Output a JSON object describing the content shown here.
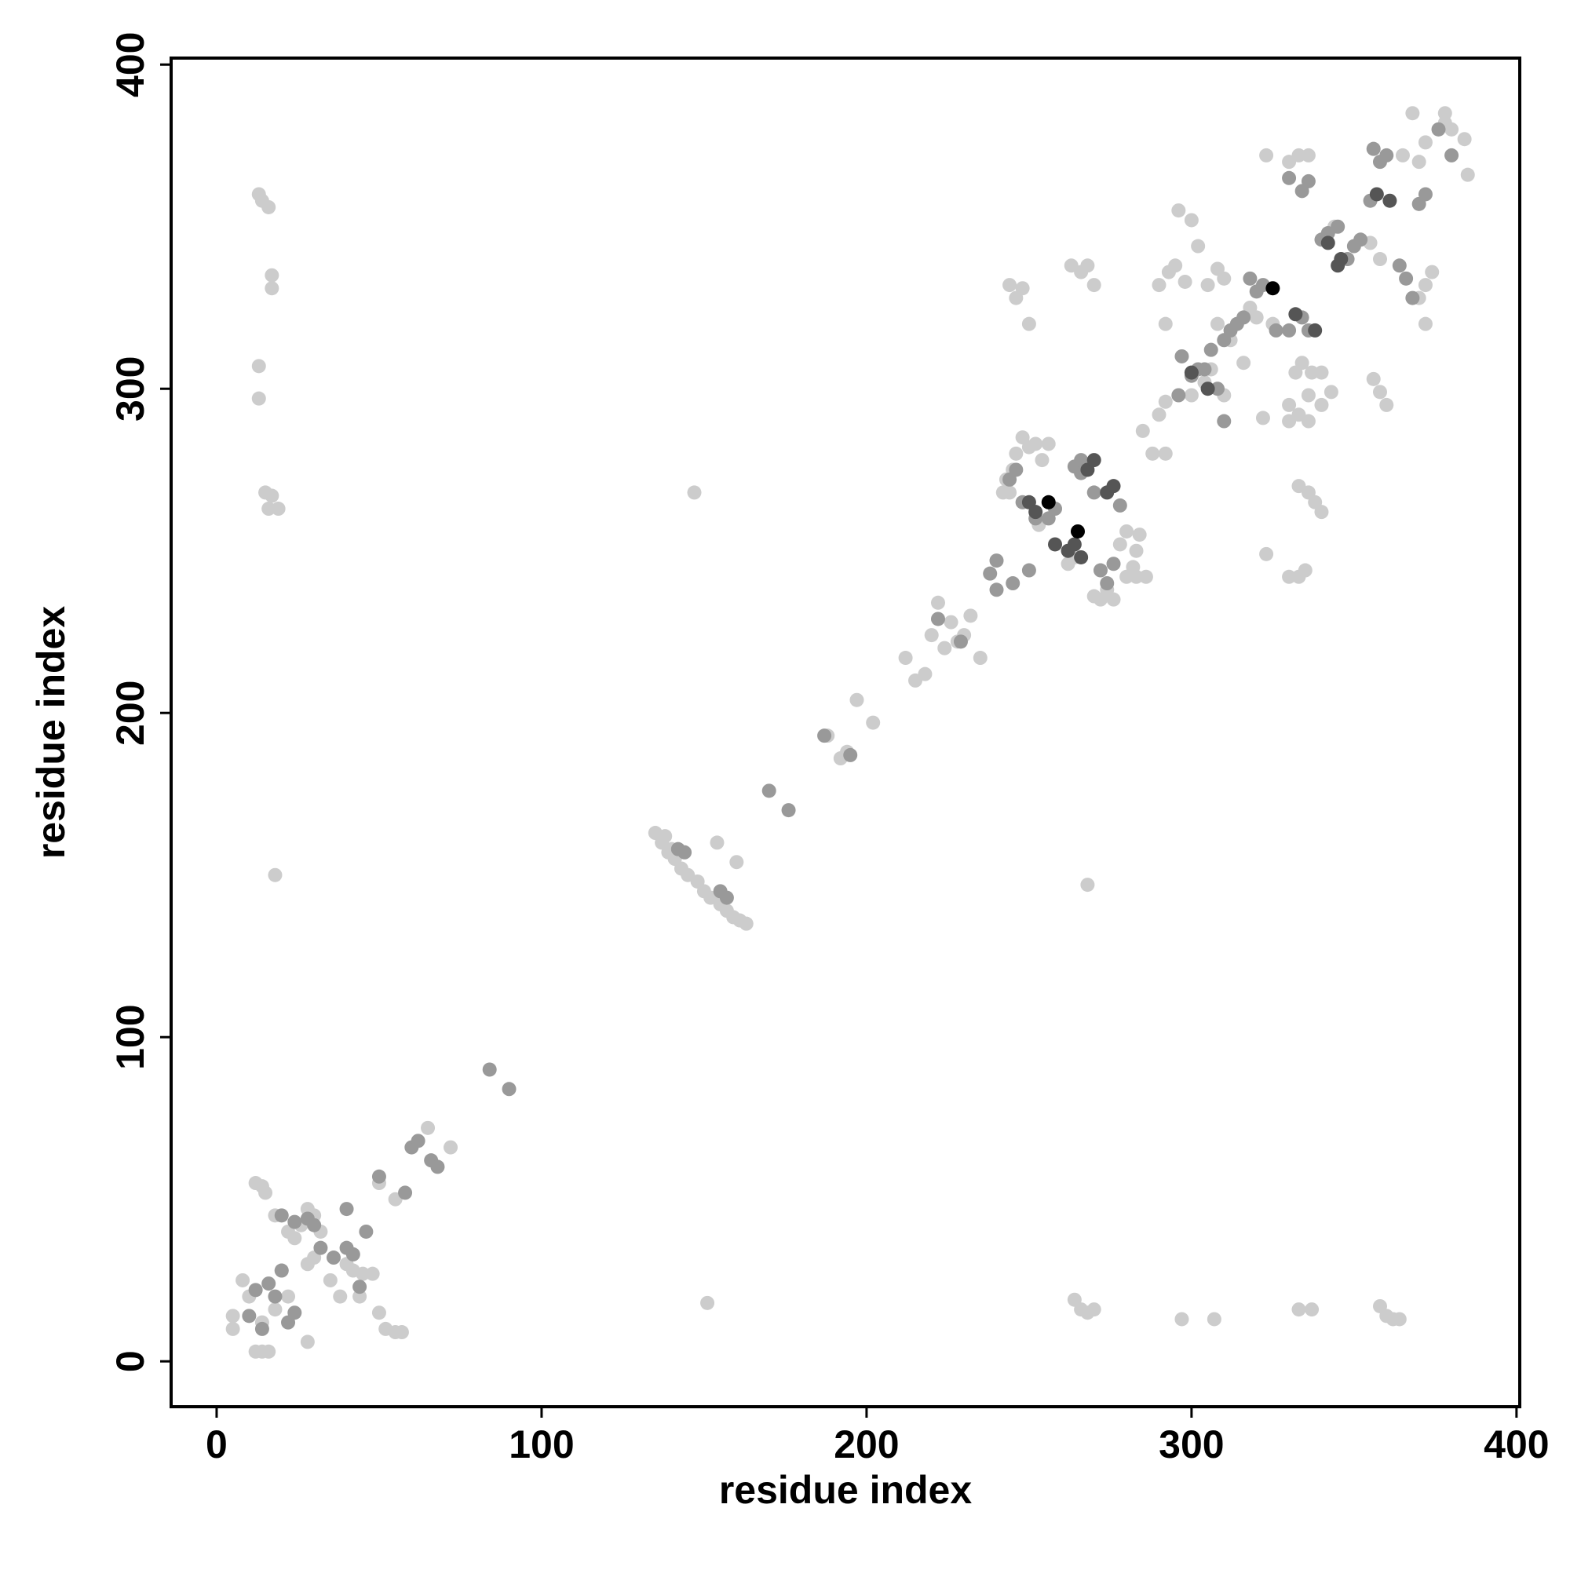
{
  "chart_data": {
    "type": "scatter",
    "xlabel": "residue index",
    "ylabel": "residue index",
    "xlim": [
      -14,
      401
    ],
    "ylim": [
      -14,
      402
    ],
    "xticks": [
      0,
      100,
      200,
      300,
      400
    ],
    "yticks": [
      0,
      100,
      200,
      300,
      400
    ],
    "series": [
      {
        "color": "#cccccc",
        "x": [
          5,
          5,
          8,
          12,
          14,
          16,
          12,
          14,
          15,
          18,
          22,
          24,
          26,
          28,
          30,
          32,
          28,
          30,
          22,
          18,
          14,
          20,
          35,
          40,
          42,
          45,
          48,
          44,
          50,
          52,
          55,
          57,
          50,
          55,
          65,
          72,
          28,
          10,
          38,
          13,
          14,
          16,
          17,
          17,
          13,
          13,
          15,
          17,
          16,
          19,
          18,
          147,
          268,
          151,
          135,
          137,
          139,
          141,
          143,
          145,
          148,
          150,
          152,
          155,
          157,
          159,
          161,
          163,
          138,
          140,
          154,
          160,
          188,
          192,
          194,
          197,
          202,
          212,
          215,
          218,
          220,
          224,
          226,
          230,
          232,
          235,
          222,
          228,
          243,
          245,
          246,
          248,
          250,
          252,
          254,
          256,
          242,
          244,
          280,
          282,
          283,
          284,
          283,
          286,
          276,
          272,
          274,
          270,
          278,
          280,
          264,
          262,
          253,
          244,
          246,
          248,
          250,
          263,
          266,
          268,
          270,
          285,
          288,
          292,
          292,
          292,
          290,
          293,
          295,
          298,
          296,
          300,
          302,
          305,
          308,
          310,
          300,
          304,
          306,
          310,
          323,
          330,
          333,
          336,
          332,
          334,
          337,
          340,
          330,
          333,
          336,
          340,
          343,
          323,
          330,
          333,
          335,
          333,
          336,
          338,
          340,
          322,
          356,
          358,
          360,
          365,
          370,
          372,
          378,
          380,
          384,
          385,
          368,
          378,
          372,
          374,
          372,
          370,
          325,
          320,
          318,
          290,
          264,
          266,
          268,
          270,
          297,
          307,
          333,
          337,
          358,
          360,
          362,
          364,
          330,
          336,
          308,
          312,
          316,
          344,
          355,
          358
        ],
        "values": [
          10,
          14,
          25,
          3,
          3,
          3,
          55,
          54,
          52,
          45,
          40,
          38,
          42,
          47,
          45,
          40,
          30,
          32,
          20,
          16,
          12,
          28,
          25,
          30,
          28,
          27,
          27,
          20,
          15,
          10,
          9,
          9,
          55,
          50,
          72,
          66,
          6,
          20,
          20,
          360,
          358,
          356,
          335,
          331,
          307,
          297,
          268,
          267,
          263,
          263,
          150,
          268,
          147,
          18,
          163,
          160,
          157,
          155,
          152,
          150,
          148,
          145,
          143,
          141,
          139,
          137,
          136,
          135,
          162,
          158,
          160,
          154,
          193,
          186,
          188,
          204,
          197,
          217,
          210,
          212,
          224,
          220,
          228,
          224,
          230,
          217,
          234,
          222,
          272,
          275,
          280,
          285,
          282,
          283,
          278,
          283,
          268,
          268,
          242,
          245,
          250,
          255,
          242,
          242,
          235,
          235,
          238,
          236,
          252,
          256,
          248,
          246,
          258,
          332,
          328,
          331,
          320,
          338,
          336,
          338,
          332,
          287,
          280,
          280,
          296,
          320,
          332,
          336,
          338,
          333,
          355,
          352,
          344,
          332,
          337,
          334,
          298,
          302,
          306,
          298,
          372,
          370,
          372,
          372,
          305,
          308,
          305,
          305,
          295,
          292,
          290,
          295,
          299,
          249,
          242,
          242,
          244,
          270,
          268,
          265,
          262,
          291,
          303,
          299,
          295,
          372,
          370,
          376,
          382,
          380,
          377,
          366,
          385,
          385,
          332,
          336,
          320,
          328,
          320,
          322,
          325,
          292,
          19,
          16,
          15,
          16,
          13,
          13,
          16,
          16,
          17,
          14,
          13,
          13,
          290,
          298,
          320,
          315,
          308,
          350,
          345,
          340
        ]
      },
      {
        "color": "#999999",
        "x": [
          10,
          12,
          14,
          16,
          18,
          20,
          22,
          24,
          20,
          24,
          28,
          30,
          32,
          36,
          40,
          42,
          44,
          40,
          46,
          50,
          58,
          60,
          62,
          66,
          68,
          84,
          90,
          142,
          144,
          155,
          157,
          170,
          176,
          187,
          195,
          222,
          229,
          238,
          240,
          240,
          245,
          244,
          246,
          248,
          252,
          256,
          258,
          264,
          266,
          270,
          272,
          274,
          276,
          278,
          296,
          297,
          300,
          302,
          304,
          306,
          308,
          310,
          312,
          314,
          316,
          318,
          320,
          322,
          326,
          330,
          334,
          336,
          340,
          342,
          345,
          348,
          350,
          352,
          356,
          358,
          360,
          364,
          366,
          368,
          370,
          372,
          376,
          380,
          355,
          310,
          330,
          334,
          336,
          266,
          250
        ],
        "values": [
          14,
          22,
          10,
          24,
          20,
          28,
          12,
          15,
          45,
          43,
          44,
          42,
          35,
          32,
          35,
          33,
          23,
          47,
          40,
          57,
          52,
          66,
          68,
          62,
          60,
          90,
          84,
          158,
          157,
          145,
          143,
          176,
          170,
          193,
          187,
          229,
          222,
          243,
          247,
          238,
          240,
          272,
          275,
          265,
          260,
          260,
          263,
          276,
          274,
          268,
          244,
          240,
          246,
          264,
          298,
          310,
          304,
          306,
          306,
          312,
          300,
          315,
          318,
          320,
          322,
          334,
          330,
          332,
          318,
          365,
          361,
          364,
          346,
          348,
          350,
          340,
          344,
          346,
          374,
          370,
          372,
          338,
          334,
          328,
          357,
          360,
          380,
          372,
          358,
          290,
          318,
          322,
          318,
          278,
          244
        ]
      },
      {
        "color": "#555555",
        "x": [
          250,
          252,
          262,
          264,
          268,
          270,
          274,
          276,
          300,
          305,
          332,
          338,
          345,
          346,
          357,
          361,
          342,
          266,
          258
        ],
        "values": [
          265,
          262,
          250,
          252,
          275,
          278,
          268,
          270,
          305,
          300,
          323,
          318,
          338,
          340,
          360,
          358,
          345,
          248,
          252
        ]
      },
      {
        "color": "#000000",
        "x": [
          256,
          265,
          325
        ],
        "values": [
          265,
          256,
          331
        ]
      }
    ]
  }
}
